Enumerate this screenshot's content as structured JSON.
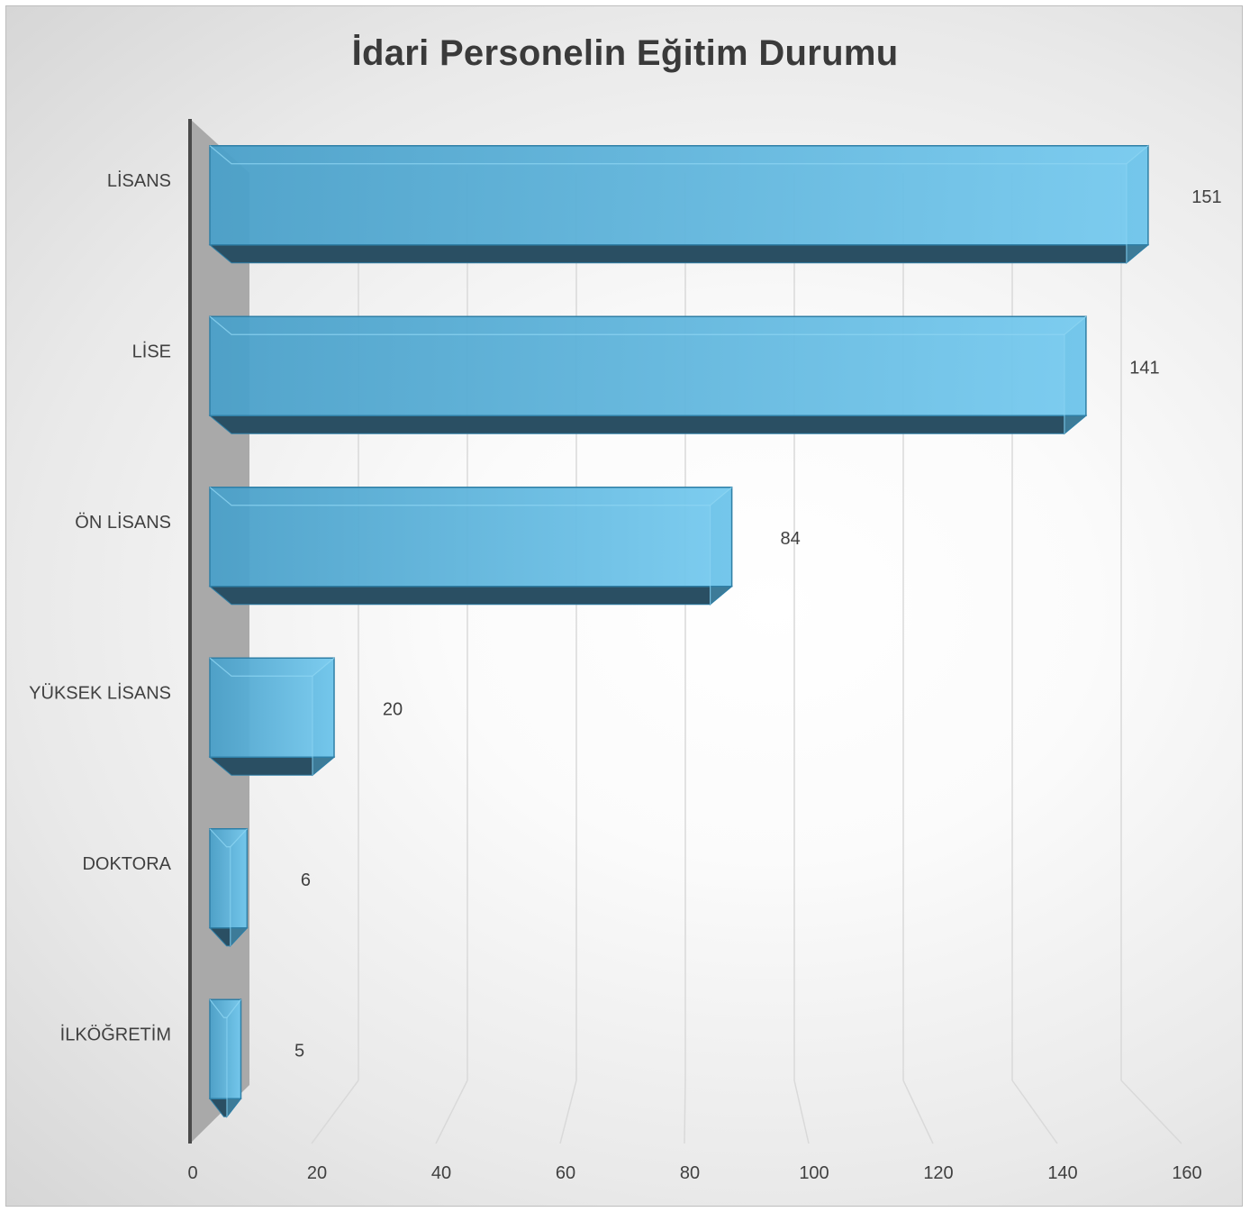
{
  "chart_data": {
    "type": "bar",
    "orientation": "horizontal",
    "title": "İdari Personelin Eğitim Durumu",
    "xlabel": "",
    "ylabel": "",
    "categories": [
      "LİSANS",
      "LİSE",
      "ÖN LİSANS",
      "YÜKSEK LİSANS",
      "DOKTORA",
      "İLKÖĞRETİM"
    ],
    "values": [
      151,
      141,
      84,
      20,
      6,
      5
    ],
    "data_labels": [
      "151",
      "141",
      "84",
      "20",
      "6",
      "5"
    ],
    "xlim": [
      0,
      160
    ],
    "x_ticks": [
      "0",
      "20",
      "40",
      "60",
      "80",
      "100",
      "120",
      "140",
      "160"
    ],
    "gridlines": true,
    "legend": "none",
    "style": "3d",
    "colors": {
      "bar_front": "#4ea6cf",
      "bar_light": "#7fd0f2",
      "bar_edge": "#2f7fa6",
      "bar_bottom": "#2a4f63",
      "bar_side": "#3f7f9d",
      "back_wall": "#a9a9a9",
      "gridline": "#d9d9d9",
      "axis_line": "#4a4a4a"
    }
  }
}
